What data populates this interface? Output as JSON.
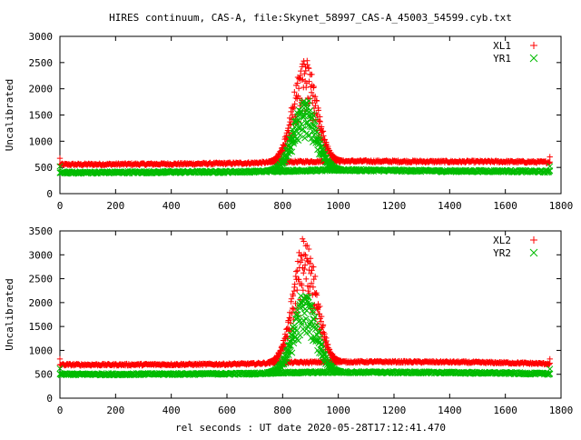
{
  "figure": {
    "title": "HIRES continuum, CAS-A, file:Skynet_58997_CAS-A_45003_54599.cyb.txt",
    "xlabel": "rel seconds : UT date 2020-05-28T17:12:41.470"
  },
  "colors": {
    "red_series": "#ff0000",
    "green_series": "#00bb00",
    "axis": "#000000"
  },
  "chart_data": [
    {
      "type": "scatter",
      "ylabel": "Uncalibrated",
      "xlim": [
        0,
        1800
      ],
      "ylim": [
        0,
        3000
      ],
      "xticks": [
        "0",
        "200",
        "400",
        "600",
        "800",
        "1000",
        "1200",
        "1400",
        "1600",
        "1800"
      ],
      "yticks": [
        "0",
        "500",
        "1000",
        "1500",
        "2000",
        "2500",
        "3000"
      ],
      "legend_position": "top-right",
      "series": [
        {
          "name": "XL1",
          "marker": "+",
          "color": "#ff0000",
          "baseline_x": [
            0,
            200,
            400,
            600,
            700,
            760,
            1000,
            1200,
            1400,
            1600,
            1760
          ],
          "baseline_y": [
            555,
            560,
            565,
            575,
            585,
            600,
            620,
            615,
            610,
            610,
            600
          ],
          "peak_x": 880,
          "peak_y": 2680
        },
        {
          "name": "YR1",
          "marker": "x",
          "color": "#00bb00",
          "baseline_x": [
            0,
            200,
            400,
            600,
            700,
            760,
            1000,
            1200,
            1400,
            1600,
            1760
          ],
          "baseline_y": [
            400,
            405,
            410,
            415,
            420,
            430,
            450,
            440,
            430,
            430,
            420
          ],
          "peak_x": 880,
          "peak_y": 1850
        }
      ]
    },
    {
      "type": "scatter",
      "ylabel": "Uncalibrated",
      "xlim": [
        0,
        1800
      ],
      "ylim": [
        0,
        3500
      ],
      "xticks": [
        "0",
        "200",
        "400",
        "600",
        "800",
        "1000",
        "1200",
        "1400",
        "1600",
        "1800"
      ],
      "yticks": [
        "0",
        "500",
        "1000",
        "1500",
        "2000",
        "2500",
        "3000",
        "3500"
      ],
      "legend_position": "top-right",
      "series": [
        {
          "name": "XL2",
          "marker": "+",
          "color": "#ff0000",
          "baseline_x": [
            0,
            200,
            400,
            600,
            700,
            760,
            1000,
            1200,
            1400,
            1600,
            1760
          ],
          "baseline_y": [
            700,
            700,
            705,
            710,
            720,
            740,
            760,
            760,
            755,
            740,
            720
          ],
          "peak_x": 880,
          "peak_y": 3420
        },
        {
          "name": "YR2",
          "marker": "x",
          "color": "#00bb00",
          "baseline_x": [
            0,
            200,
            400,
            600,
            700,
            760,
            1000,
            1200,
            1400,
            1600,
            1760
          ],
          "baseline_y": [
            500,
            500,
            505,
            510,
            515,
            530,
            545,
            540,
            535,
            525,
            510
          ],
          "peak_x": 880,
          "peak_y": 2250
        }
      ]
    }
  ]
}
